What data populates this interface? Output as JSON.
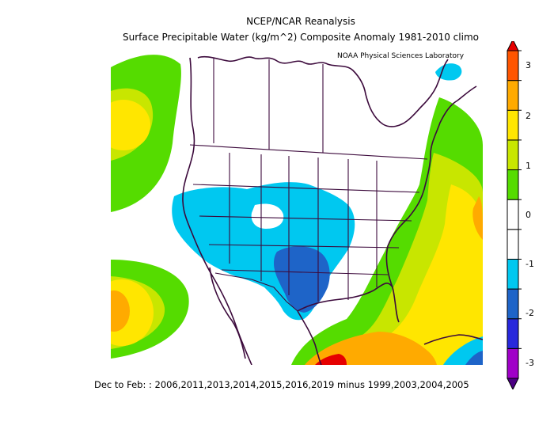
{
  "header": {
    "line1": "NCEP/NCAR Reanalysis",
    "line2": "Surface Precipitable Water (kg/m^2) Composite Anomaly 1981-2010 climo",
    "credit": "NOAA Physical Sciences Laboratory"
  },
  "colorbar": {
    "ticks": [
      "3",
      "2",
      "1",
      "0",
      "-1",
      "-2",
      "-3"
    ],
    "colors": [
      "#4b0082",
      "#a000c8",
      "#2828dc",
      "#1e64c8",
      "#00c8f0",
      "#ffffff",
      "#ffffff",
      "#55dc00",
      "#c8e600",
      "#ffe600",
      "#ffaa00",
      "#ff5500",
      "#e60000"
    ]
  },
  "map": {
    "region": "North America",
    "palette": {
      "ocean": "#ffffff",
      "green": "#55dc00",
      "yellowgreen": "#c8e600",
      "yellow": "#ffe600",
      "orange": "#ffaa00",
      "deep_orange": "#ff5500",
      "red": "#e60000",
      "cyan": "#00c8f0",
      "blue": "#1e64c8",
      "boundary": "#3c0a3c"
    }
  },
  "footer": {
    "text": "Dec to Feb: : 2006,2011,2013,2014,2015,2016,2019 minus 1999,2003,2004,2005"
  }
}
